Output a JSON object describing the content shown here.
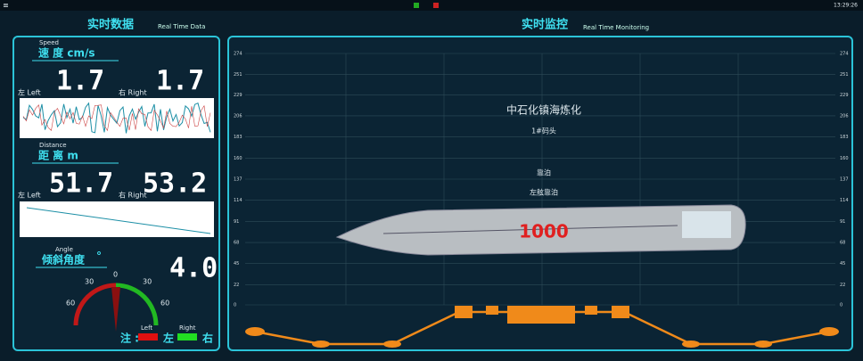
{
  "top_bar": {
    "time": "13:29:26"
  },
  "left_panel": {
    "title": "实时数据",
    "subtitle": "Real Time Data",
    "speed": {
      "label_en": "Speed",
      "label": "速 度 cm/s",
      "left_value": "1.7",
      "right_value": "1.7",
      "left_label": "左 Left",
      "right_label": "右 Right"
    },
    "distance": {
      "label_en": "Distance",
      "label": "距 离  m",
      "left_value": "51.7",
      "right_value": "53.2",
      "left_label": "左 Left",
      "right_label": "右 Right"
    },
    "angle": {
      "label_en": "Angle",
      "label": "倾斜角度",
      "unit": "°",
      "value": "4.0",
      "gauge_labels": [
        "60",
        "30",
        "0",
        "30",
        "60"
      ]
    },
    "legend": {
      "note": "注 :",
      "left_en": "Left",
      "left": "左",
      "right_en": "Right",
      "right": "右"
    }
  },
  "right_panel": {
    "title": "实时监控",
    "subtitle": "Real Time Monitoring",
    "ylim": [
      0,
      274
    ],
    "yticks": [
      0,
      22,
      45,
      68,
      91,
      114,
      137,
      160,
      183,
      206,
      229,
      251,
      274
    ],
    "company": "中石化镇海炼化",
    "berth": "1#码头",
    "status": "靠泊",
    "side": "左舷靠泊",
    "ship_number": "1000"
  }
}
